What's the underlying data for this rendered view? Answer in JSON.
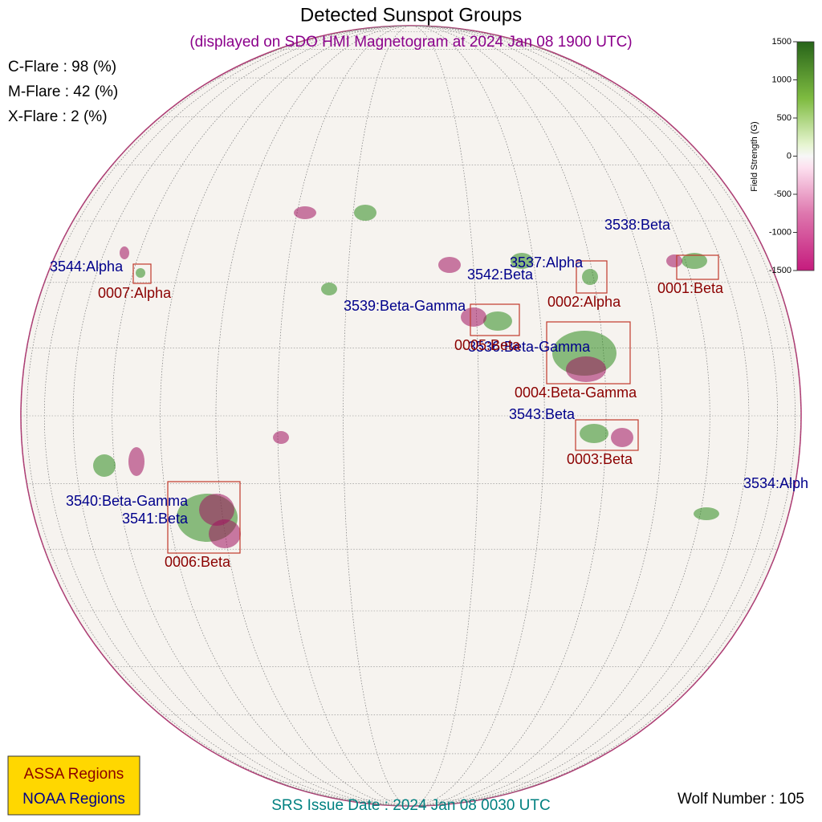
{
  "title": "Detected Sunspot Groups",
  "subtitle": "(displayed on SDO HMI Magnetogram at 2024 Jan 08 1900 UTC)",
  "flare_probabilities": [
    "C-Flare : 98 (%)",
    "M-Flare : 42 (%)",
    "X-Flare :  2 (%)"
  ],
  "colorbar": {
    "label": "Field Strength (G)",
    "lim": [
      -1500,
      1500
    ],
    "ticks": [
      1500,
      1000,
      500,
      0,
      -500,
      -1000,
      -1500
    ]
  },
  "noaa_regions": [
    "3544:Alpha",
    "3542:Beta",
    "3537:Alpha",
    "3538:Beta",
    "3539:Beta-Gamma",
    "3536:Beta-Gamma",
    "3543:Beta",
    "3534:Alph",
    "3540:Beta-Gamma",
    "3541:Beta"
  ],
  "assa_regions": [
    "0007:Alpha",
    "0002:Alpha",
    "0001:Beta",
    "0005:Beta",
    "0004:Beta-Gamma",
    "0003:Beta",
    "0006:Beta"
  ],
  "legend": {
    "assa": "ASSA Regions",
    "noaa": "NOAA Regions"
  },
  "srs_issue_date": "SRS Issue Date : 2024 Jan 08 0030 UTC",
  "wolf_number": "Wolf Number : 105"
}
